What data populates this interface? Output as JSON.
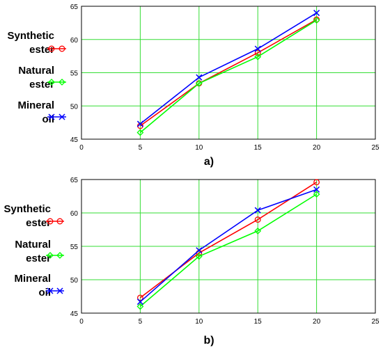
{
  "chart_data": [
    {
      "type": "line",
      "panel_label": "a)",
      "x": [
        5,
        10,
        15,
        20
      ],
      "xlim": [
        0,
        25
      ],
      "ylim": [
        45,
        65
      ],
      "xticks": [
        0,
        5,
        10,
        15,
        20,
        25
      ],
      "yticks": [
        45,
        50,
        55,
        60,
        65
      ],
      "grid": true,
      "series": [
        {
          "name_lines": [
            "Synthetic",
            "ester"
          ],
          "color": "#ff0000",
          "marker": "circle",
          "values": [
            47.0,
            53.4,
            58.0,
            63.0
          ]
        },
        {
          "name_lines": [
            "Natural",
            "ester"
          ],
          "color": "#00ff00",
          "marker": "diamond",
          "values": [
            46.0,
            53.4,
            57.4,
            62.9
          ]
        },
        {
          "name_lines": [
            "Mineral",
            "oil"
          ],
          "color": "#0000ff",
          "marker": "x",
          "values": [
            47.3,
            54.3,
            58.6,
            64.0
          ]
        }
      ]
    },
    {
      "type": "line",
      "panel_label": "b)",
      "x": [
        5,
        10,
        15,
        20
      ],
      "xlim": [
        0,
        25
      ],
      "ylim": [
        45,
        65
      ],
      "xticks": [
        0,
        5,
        10,
        15,
        20,
        25
      ],
      "yticks": [
        45,
        50,
        55,
        60,
        65
      ],
      "grid": true,
      "series": [
        {
          "name_lines": [
            "Synthetic",
            "ester"
          ],
          "color": "#ff0000",
          "marker": "circle",
          "values": [
            47.3,
            54.0,
            59.0,
            64.6
          ]
        },
        {
          "name_lines": [
            "Natural",
            "ester"
          ],
          "color": "#00ff00",
          "marker": "diamond",
          "values": [
            46.0,
            53.5,
            57.3,
            62.8
          ]
        },
        {
          "name_lines": [
            "Mineral",
            "oil"
          ],
          "color": "#0000ff",
          "marker": "x",
          "values": [
            46.7,
            54.4,
            60.4,
            63.5
          ]
        }
      ]
    }
  ]
}
